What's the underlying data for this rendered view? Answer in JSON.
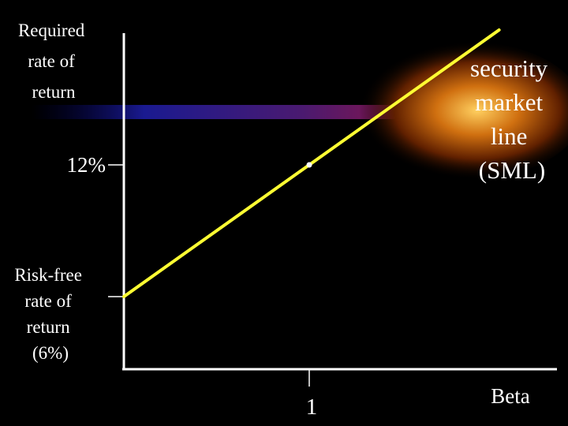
{
  "chart_data": {
    "type": "line",
    "title": "",
    "ylabel": [
      "Required",
      "rate of",
      "return"
    ],
    "xlabel": "Beta",
    "series": [
      {
        "name": [
          "security",
          "market",
          "line",
          "(SML)"
        ],
        "x": [
          0,
          1
        ],
        "y": [
          6,
          12
        ],
        "color": "#FFFF33"
      }
    ],
    "marked_point": {
      "x": 1,
      "y": 12
    },
    "x_ticks": [
      {
        "value": 1,
        "label": "1"
      }
    ],
    "y_ticks": [
      {
        "value": 12,
        "label": "12%"
      },
      {
        "value": 6,
        "label": [
          "Risk-free",
          "rate of",
          "return",
          "(6%)"
        ]
      }
    ],
    "grid": false,
    "legend": "none"
  },
  "colors": {
    "background": "#000000",
    "axes": "#ffffff",
    "line": "#FFFF33",
    "text": "#ffffff"
  }
}
